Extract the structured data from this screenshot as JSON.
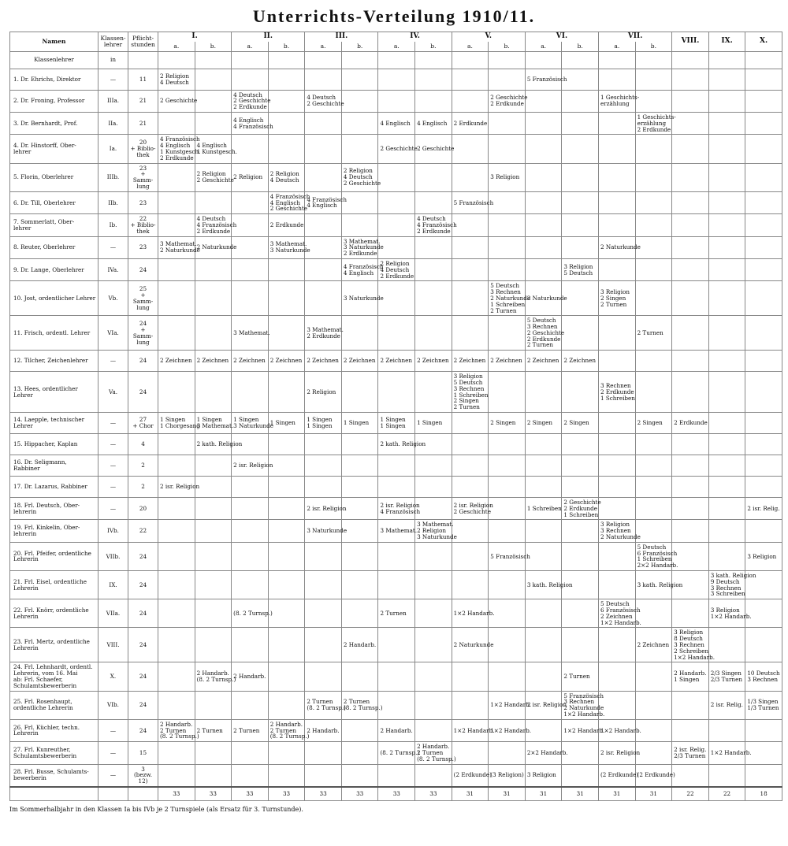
{
  "header": {
    "title": "Unterrichts-Verteilung 1910/11."
  },
  "table": {
    "columns": {
      "name": "Namen",
      "klasse": "Klassen-\nlehrer",
      "pflicht": "Pflicht-\nstunden"
    },
    "groups": [
      {
        "label": "I.",
        "subs": [
          "a.",
          "b."
        ]
      },
      {
        "label": "II.",
        "subs": [
          "a.",
          "b."
        ]
      },
      {
        "label": "III.",
        "subs": [
          "a.",
          "b."
        ]
      },
      {
        "label": "IV.",
        "subs": [
          "a.",
          "b."
        ]
      },
      {
        "label": "V.",
        "subs": [
          "a.",
          "b."
        ]
      },
      {
        "label": "VI.",
        "subs": [
          "a.",
          "b."
        ]
      },
      {
        "label": "VII.",
        "subs": [
          "a.",
          "b."
        ]
      },
      {
        "label": "VIII.",
        "subs": []
      },
      {
        "label": "IX.",
        "subs": []
      },
      {
        "label": "X.",
        "subs": []
      }
    ],
    "klassenlehrer_row": {
      "name": "Klassenlehrer",
      "klasse": "in"
    },
    "rows": [
      {
        "name": "1. Dr. Ehrichs, Direktor",
        "klasse": "—",
        "pflicht": "11",
        "cells": [
          "2 Religion\n4 Deutsch",
          null,
          null,
          null,
          null,
          null,
          null,
          null,
          null,
          null,
          "5 Französisch",
          null,
          null,
          null,
          null,
          null,
          null
        ]
      },
      {
        "name": "2. Dr. Froning, Professor",
        "klasse": "IIIa.",
        "pflicht": "21",
        "cells": [
          "2 Geschichte",
          null,
          "4 Deutsch\n2 Geschichte\n2 Erdkunde",
          null,
          "4 Deutsch\n2 Geschichte",
          null,
          null,
          null,
          null,
          "2 Geschichte\n2 Erdkunde",
          null,
          null,
          "1 Geschichts-\nerzählung",
          null,
          null,
          null,
          null
        ]
      },
      {
        "name": "3. Dr. Bernhardt, Prof.",
        "klasse": "IIa.",
        "pflicht": "21",
        "cells": [
          null,
          null,
          "4 Englisch\n4 Französisch",
          null,
          null,
          null,
          "4 Englisch",
          "4 Englisch",
          "2 Erdkunde",
          null,
          null,
          null,
          null,
          "1 Geschichts-\nerzählung\n2 Erdkunde",
          null,
          null,
          null
        ]
      },
      {
        "name": "4. Dr. Hinstorff, Ober-\nlehrer",
        "klasse": "Ia.",
        "pflicht": "20\n+ Biblio-\nthek",
        "cells": [
          "4 Französisch\n4 Englisch\n1 Kunstgesch.\n2 Erdkunde",
          "4 Englisch\n1 Kunstgesch.",
          null,
          null,
          null,
          null,
          "2 Geschichte",
          "2 Geschichte",
          null,
          null,
          null,
          null,
          null,
          null,
          null,
          null,
          null
        ]
      },
      {
        "name": "5. Florin, Oberlehrer",
        "klasse": "IIIb.",
        "pflicht": "23\n+ Samm-\nlung",
        "cells": [
          null,
          "2 Religion\n2 Geschichte",
          "2 Religion",
          "2 Religion\n4 Deutsch",
          null,
          "2 Religion\n4 Deutsch\n2 Geschichte",
          null,
          null,
          null,
          "3 Religion",
          null,
          null,
          null,
          null,
          null,
          null,
          null
        ]
      },
      {
        "name": "6. Dr. Till, Oberlehrer",
        "klasse": "IIb.",
        "pflicht": "23",
        "cells": [
          null,
          null,
          null,
          "4 Französisch\n4 Englisch\n2 Geschichte",
          "4 Französisch\n4 Englisch",
          null,
          null,
          null,
          "5 Französisch",
          null,
          null,
          null,
          null,
          null,
          null,
          null,
          null
        ]
      },
      {
        "name": "7. Sommerlatt, Ober-\nlehrer",
        "klasse": "Ib.",
        "pflicht": "22\n+ Biblio-\nthek",
        "cells": [
          null,
          "4 Deutsch\n4 Französisch\n2 Erdkunde",
          null,
          "2 Erdkunde",
          null,
          null,
          null,
          "4 Deutsch\n4 Französisch\n2 Erdkunde",
          null,
          null,
          null,
          null,
          null,
          null,
          null,
          null,
          null
        ]
      },
      {
        "name": "8. Reuter, Oberlehrer",
        "klasse": "—",
        "pflicht": "23",
        "cells": [
          "3 Mathemat.\n2 Naturkunde",
          "2 Naturkunde",
          null,
          "3 Mathemat.\n3 Naturkunde",
          null,
          "3 Mathemat.\n3 Naturkunde\n2 Erdkunde",
          null,
          null,
          null,
          null,
          null,
          null,
          "2 Naturkunde",
          null,
          null,
          null,
          null
        ]
      },
      {
        "name": "9. Dr. Lange, Oberlehrer",
        "klasse": "IVa.",
        "pflicht": "24",
        "cells": [
          null,
          null,
          null,
          null,
          null,
          "4 Französisch\n4 Englisch",
          "2 Religion\n4 Deutsch\n2 Erdkunde",
          null,
          null,
          null,
          null,
          "3 Religion\n5 Deutsch",
          null,
          null,
          null,
          null,
          null
        ]
      },
      {
        "name": "10. Jost, ordentlicher Lehrer",
        "klasse": "Vb.",
        "pflicht": "25\n+ Samm-\nlung",
        "cells": [
          null,
          null,
          null,
          null,
          null,
          "3 Naturkunde",
          null,
          null,
          null,
          "5 Deutsch\n3 Rechnen\n2 Naturkunde\n1 Schreiben\n2 Turnen",
          "2 Naturkunde",
          null,
          "3 Religion\n2 Singen\n2 Turnen",
          null,
          null,
          null,
          null
        ]
      },
      {
        "name": "11. Frisch, ordentl. Lehrer",
        "klasse": "VIa.",
        "pflicht": "24\n+ Samm-\nlung",
        "cells": [
          null,
          null,
          "3 Mathemat.",
          null,
          "3 Mathemat.\n2 Erdkunde",
          null,
          null,
          null,
          null,
          null,
          "5 Deutsch\n3 Rechnen\n2 Geschichte\n2 Erdkunde\n2 Turnen",
          null,
          null,
          "2 Turnen",
          null,
          null,
          null
        ]
      },
      {
        "name": "12. Tilcher, Zeichenlehrer",
        "klasse": "—",
        "pflicht": "24",
        "cells": [
          "2 Zeichnen",
          "2 Zeichnen",
          "2 Zeichnen",
          "2 Zeichnen",
          "2 Zeichnen",
          "2 Zeichnen",
          "2 Zeichnen",
          "2 Zeichnen",
          "2 Zeichnen",
          "2 Zeichnen",
          "2 Zeichnen",
          "2 Zeichnen",
          null,
          null,
          null,
          null,
          null
        ]
      },
      {
        "name": "13. Hees, ordentlicher Lehrer",
        "klasse": "Va.",
        "pflicht": "24",
        "cells": [
          null,
          null,
          null,
          null,
          "2 Religion",
          null,
          null,
          null,
          "3 Religion\n5 Deutsch\n3 Rechnen\n1 Schreiben\n2 Singen\n2 Turnen",
          null,
          null,
          null,
          "3 Rechnen\n2 Erdkunde\n1 Schreiben",
          null,
          null,
          null,
          null
        ]
      },
      {
        "name": "14. Laepple, technischer\nLehrer",
        "klasse": "—",
        "pflicht": "27\n+ Chor",
        "cells": [
          "1 Singen\n1 Chorgesang",
          "1 Singen\n3 Mathemat.",
          "1 Singen\n3 Naturkunde",
          "1 Singen",
          "1 Singen\n1 Singen",
          "1 Singen",
          "1 Singen\n1 Singen",
          "1 Singen",
          null,
          "2 Singen",
          "2 Singen",
          "2 Singen",
          null,
          "2 Singen",
          "2 Erdkunde",
          null,
          null
        ]
      },
      {
        "name": "15. Hippacher, Kaplan",
        "klasse": "—",
        "pflicht": "4",
        "cells": [
          null,
          "2 kath. Religion",
          null,
          null,
          null,
          null,
          "2 kath. Religion",
          null,
          null,
          null,
          null,
          null,
          null,
          null,
          null,
          null,
          null
        ]
      },
      {
        "name": "16. Dr. Seligmann,\nRabbiner",
        "klasse": "—",
        "pflicht": "2",
        "cells": [
          null,
          null,
          "2 isr. Religion",
          null,
          null,
          null,
          null,
          null,
          null,
          null,
          null,
          null,
          null,
          null,
          null,
          null,
          null
        ]
      },
      {
        "name": "17. Dr. Lazarus, Rabbiner",
        "klasse": "—",
        "pflicht": "2",
        "cells": [
          "2 isr. Religion",
          null,
          null,
          null,
          null,
          null,
          null,
          null,
          null,
          null,
          null,
          null,
          null,
          null,
          null,
          null,
          null
        ]
      },
      {
        "name": "18. Frl. Deutsch, Ober-\nlehrerin",
        "klasse": "—",
        "pflicht": "20",
        "cells": [
          null,
          null,
          null,
          null,
          "2 isr. Religion",
          null,
          "2 isr. Religion\n4 Französisch",
          null,
          "2 isr. Religion\n2 Geschichte",
          null,
          "1 Schreiben",
          "2 Geschichte\n2 Erdkunde\n1 Schreiben",
          null,
          null,
          null,
          null,
          "2 isr. Relig."
        ]
      },
      {
        "name": "19. Frl. Kinkelin, Ober-\nlehrerin",
        "klasse": "IVb.",
        "pflicht": "22",
        "cells": [
          null,
          null,
          null,
          null,
          "3 Naturkunde",
          null,
          "3 Mathemat.",
          "3 Mathemat.\n2 Religion\n3 Naturkunde",
          null,
          null,
          null,
          null,
          "3 Religion\n3 Rechnen\n2 Naturkunde",
          null,
          null,
          null,
          null
        ]
      },
      {
        "name": "20. Frl. Pfeifer, ordentliche\nLehrerin",
        "klasse": "VIIb.",
        "pflicht": "24",
        "cells": [
          null,
          null,
          null,
          null,
          null,
          null,
          null,
          null,
          null,
          "5 Französisch",
          null,
          null,
          null,
          "5 Deutsch\n6 Französisch\n1 Schreiben\n2×2 Handarb.",
          null,
          null,
          "3 Religion"
        ]
      },
      {
        "name": "21. Frl. Eisel, ordentliche\nLehrerin",
        "klasse": "IX.",
        "pflicht": "24",
        "cells": [
          null,
          null,
          null,
          null,
          null,
          null,
          null,
          null,
          null,
          null,
          "3 kath. Religion",
          null,
          null,
          "3 kath. Religion",
          null,
          "3 kath. Religion\n9 Deutsch\n3 Rechnen\n3 Schreiben",
          null
        ]
      },
      {
        "name": "22. Frl. Knörr, ordentliche\nLehrerin",
        "klasse": "VIIa.",
        "pflicht": "24",
        "cells": [
          null,
          null,
          "(8. 2 Turnsp.)",
          null,
          null,
          null,
          "2 Turnen",
          null,
          "1×2 Handarb.",
          null,
          null,
          null,
          "5 Deutsch\n6 Französisch\n2 Zeichnen\n1×2 Handarb.",
          null,
          null,
          "3 Religion\n1×2 Handarb.",
          null
        ]
      },
      {
        "name": "23. Frl. Mertz, ordentliche\nLehrerin",
        "klasse": "VIII.",
        "pflicht": "24",
        "cells": [
          null,
          null,
          null,
          null,
          null,
          "2 Handarb.",
          null,
          null,
          "2 Naturkunde",
          null,
          null,
          null,
          null,
          "2 Zeichnen",
          "3 Religion\n8 Deutsch\n3 Rechnen\n2 Schreiben\n1×2 Handarb.",
          null,
          null
        ]
      },
      {
        "name": "24. Frl. Lehnhardt, ordentl.\nLehrerin, vom 16. Mai\nab: Frl. Schaefer,\nSchulamtsbewerberin",
        "klasse": "X.",
        "pflicht": "24",
        "cells": [
          null,
          "2 Handarb.\n(8. 2 Turnsp.)",
          "2 Handarb.",
          null,
          null,
          null,
          null,
          null,
          null,
          null,
          null,
          "2 Turnen",
          null,
          null,
          "2 Handarb.\n1 Singen",
          "2/3 Singen\n2/3 Turnen",
          "10 Deutsch\n3 Rechnen"
        ]
      },
      {
        "name": "25. Frl. Rosenhaupt,\nordentliche Lehrerin",
        "klasse": "VIb.",
        "pflicht": "24",
        "cells": [
          null,
          null,
          null,
          null,
          "2 Turnen\n(8. 2 Turnsp.)",
          "2 Turnen\n(8. 2 Turnsp.)",
          null,
          null,
          null,
          "1×2 Handarb.",
          "2 isr. Religion",
          "5 Französisch\n3 Rechnen\n2 Naturkunde\n1×2 Handarb.",
          null,
          null,
          null,
          "2 isr. Relig.",
          "1/3 Singen\n1/3 Turnen"
        ]
      },
      {
        "name": "26. Frl. Küchler, techn.\nLehrerin",
        "klasse": "—",
        "pflicht": "24",
        "cells": [
          "2 Handarb.\n2 Turnen\n(8. 2 Turnsp.)",
          "2 Turnen",
          "2 Turnen",
          "2 Handarb.\n2 Turnen\n(8. 2 Turnsp.)",
          "2 Handarb.",
          null,
          "2 Handarb.",
          null,
          "1×2 Handarb.",
          "1×2 Handarb.",
          null,
          "1×2 Handarb.",
          "1×2 Handarb.",
          null,
          null,
          null,
          null
        ]
      },
      {
        "name": "27. Frl. Kunreuther,\nSchulamtsbewerberin",
        "klasse": "—",
        "pflicht": "15",
        "cells": [
          null,
          null,
          null,
          null,
          null,
          null,
          "(8. 2 Turnsp.)",
          "2 Handarb.\n2 Turnen\n(8. 2 Turnsp.)",
          null,
          null,
          "2×2 Handarb.",
          null,
          "2 isr. Religion",
          null,
          "2 isr. Relig.\n2/3 Turnen",
          "1×2 Handarb.",
          null
        ]
      },
      {
        "name": "28. Frl. Busse, Schulamts-\nbewerberin",
        "klasse": "—",
        "pflicht": "3\n(bezw. 12)",
        "cells": [
          null,
          null,
          null,
          null,
          null,
          null,
          null,
          null,
          "(2 Erdkunde)",
          "(3 Religion)",
          "3 Religion",
          null,
          "(2 Erdkunde)",
          "(2 Erdkunde)",
          null,
          null,
          null
        ]
      }
    ],
    "totals": [
      33,
      33,
      33,
      33,
      33,
      33,
      33,
      33,
      31,
      31,
      31,
      31,
      31,
      31,
      22,
      22,
      18
    ]
  },
  "footer": {
    "note": "Im Sommerhalbjahr in den Klassen Ia bis IVb je 2 Turnspiele (als Ersatz für 3. Turnstunde)."
  }
}
